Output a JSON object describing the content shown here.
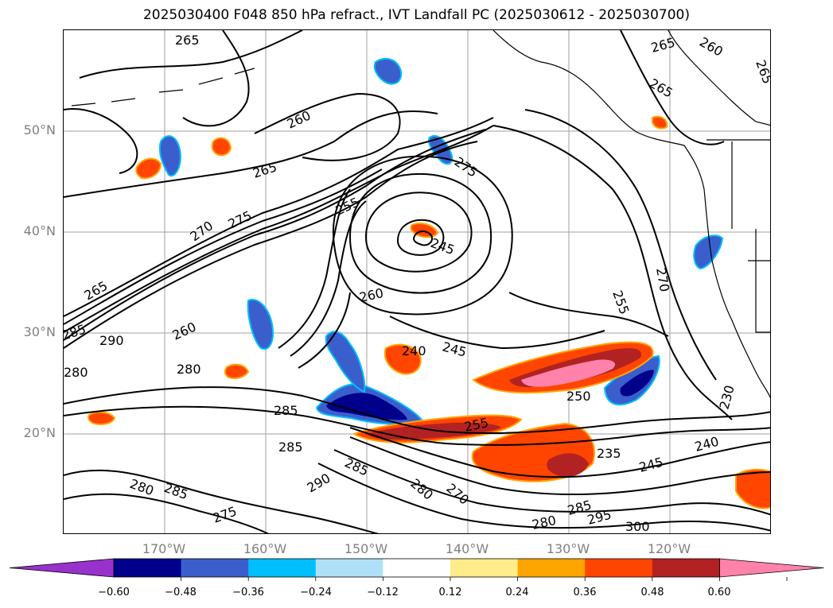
{
  "title": "2025030400 F048 850 hPa refract., IVT Landfall PC (2025030612 - 2025030700)",
  "lat_labels": [
    "50°N",
    "40°N",
    "30°N",
    "20°N"
  ],
  "lon_labels": [
    "170°W",
    "160°W",
    "150°W",
    "140°W",
    "130°W",
    "120°W"
  ],
  "colorbar": {
    "ticks": [
      "−0.60",
      "−0.48",
      "−0.36",
      "−0.24",
      "−0.12",
      "0.12",
      "0.24",
      "0.36",
      "0.48",
      "0.60"
    ],
    "colors": [
      "#9932cc",
      "#00008b",
      "#3a5fcd",
      "#00bfff",
      "#b0e0f8",
      "#ffffff",
      "#ffec8b",
      "#ffa500",
      "#ff4500",
      "#b22222",
      "#ff82ab"
    ]
  },
  "contour_labels": [
    "265",
    "260",
    "265",
    "270",
    "275",
    "255",
    "245",
    "275",
    "260",
    "240",
    "245",
    "265",
    "290",
    "285",
    "260",
    "280",
    "280",
    "285",
    "255",
    "250",
    "235",
    "245",
    "240",
    "230",
    "255",
    "265",
    "265",
    "260",
    "290",
    "285",
    "280",
    "270",
    "285",
    "280",
    "275",
    "285",
    "295",
    "300",
    "280",
    "265",
    "270",
    "285"
  ],
  "colors": {
    "contour": "#000000",
    "grid": "#a0a0a0",
    "coast": "#000000"
  }
}
